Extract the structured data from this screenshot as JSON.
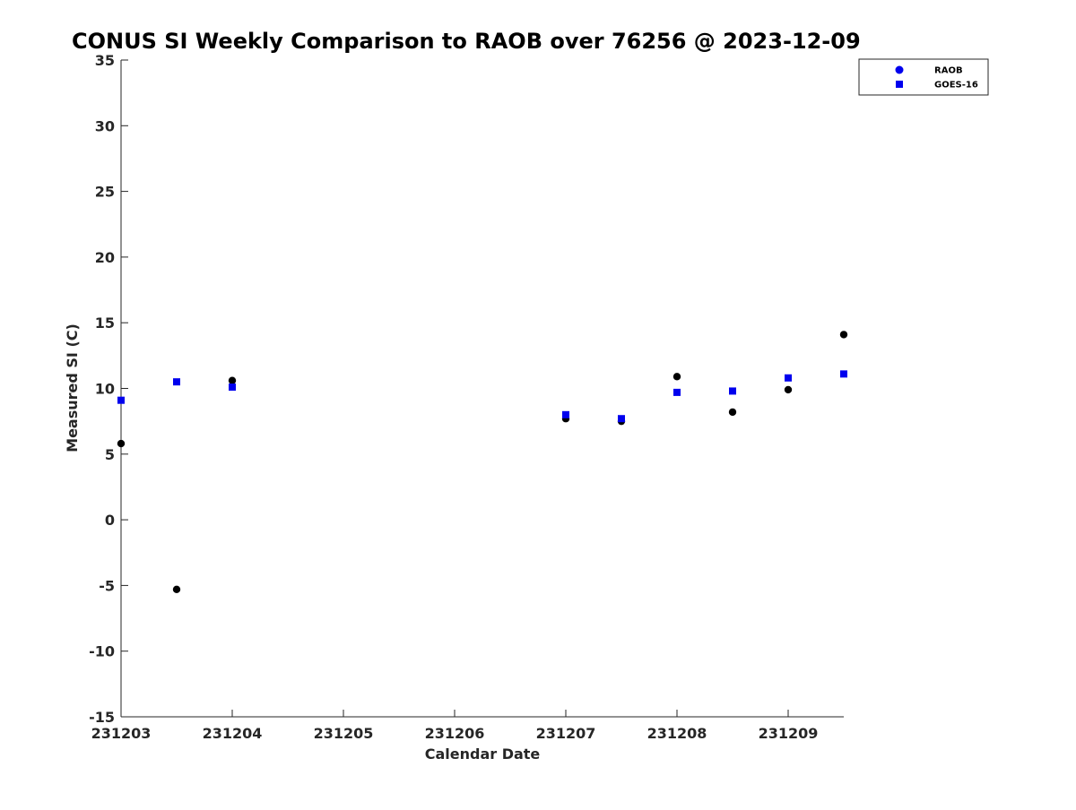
{
  "chart_data": {
    "type": "scatter",
    "title": "CONUS SI Weekly Comparison to RAOB over 76256 @ 2023-12-09",
    "xlabel": "Calendar Date",
    "ylabel": "Measured SI (C)",
    "xlim": [
      "231203",
      "231209.5"
    ],
    "ylim": [
      -15,
      35
    ],
    "x_ticks": [
      "231203",
      "231204",
      "231205",
      "231206",
      "231207",
      "231208",
      "231209"
    ],
    "y_ticks": [
      -15,
      -10,
      -5,
      0,
      5,
      10,
      15,
      20,
      25,
      30,
      35
    ],
    "grid": false,
    "legend_position": "top-right",
    "series": [
      {
        "name": "RAOB",
        "marker": "circle",
        "color": "#000000",
        "legend_color": "#0000ee",
        "points": [
          {
            "x": 231203.0,
            "y": 5.8
          },
          {
            "x": 231203.5,
            "y": -5.3
          },
          {
            "x": 231204.0,
            "y": 10.6
          },
          {
            "x": 231207.0,
            "y": 7.7
          },
          {
            "x": 231207.5,
            "y": 7.5
          },
          {
            "x": 231208.0,
            "y": 10.9
          },
          {
            "x": 231208.5,
            "y": 8.2
          },
          {
            "x": 231209.0,
            "y": 9.9
          },
          {
            "x": 231209.5,
            "y": 14.1
          }
        ]
      },
      {
        "name": "GOES-16",
        "marker": "square",
        "color": "#0000ee",
        "legend_color": "#0000ee",
        "points": [
          {
            "x": 231203.0,
            "y": 9.1
          },
          {
            "x": 231203.5,
            "y": 10.5
          },
          {
            "x": 231204.0,
            "y": 10.1
          },
          {
            "x": 231207.0,
            "y": 8.0
          },
          {
            "x": 231207.5,
            "y": 7.7
          },
          {
            "x": 231208.0,
            "y": 9.7
          },
          {
            "x": 231208.5,
            "y": 9.8
          },
          {
            "x": 231209.0,
            "y": 10.8
          },
          {
            "x": 231209.5,
            "y": 11.1
          }
        ]
      }
    ]
  }
}
